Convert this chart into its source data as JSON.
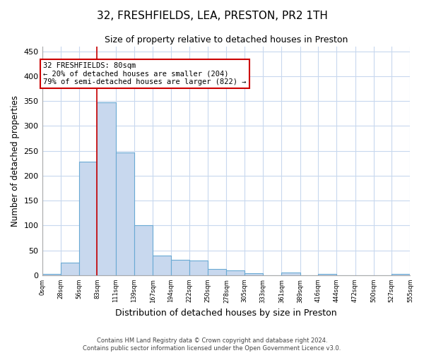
{
  "title": "32, FRESHFIELDS, LEA, PRESTON, PR2 1TH",
  "subtitle": "Size of property relative to detached houses in Preston",
  "xlabel": "Distribution of detached houses by size in Preston",
  "ylabel": "Number of detached properties",
  "footer_line1": "Contains HM Land Registry data © Crown copyright and database right 2024.",
  "footer_line2": "Contains public sector information licensed under the Open Government Licence v3.0.",
  "bar_color": "#c8d8ee",
  "bar_edge_color": "#6aaad4",
  "grid_color": "#c8d8ee",
  "bg_color": "#ffffff",
  "annotation_line_color": "#cc0000",
  "property_label": "32 FRESHFIELDS: 80sqm",
  "annotation_line1": "← 20% of detached houses are smaller (204)",
  "annotation_line2": "79% of semi-detached houses are larger (822) →",
  "bin_edges": [
    0,
    28,
    56,
    83,
    111,
    139,
    167,
    194,
    222,
    250,
    278,
    305,
    333,
    361,
    389,
    416,
    444,
    472,
    500,
    527,
    555
  ],
  "bin_labels": [
    "0sqm",
    "28sqm",
    "56sqm",
    "83sqm",
    "111sqm",
    "139sqm",
    "167sqm",
    "194sqm",
    "222sqm",
    "250sqm",
    "278sqm",
    "305sqm",
    "333sqm",
    "361sqm",
    "389sqm",
    "416sqm",
    "444sqm",
    "472sqm",
    "500sqm",
    "527sqm",
    "555sqm"
  ],
  "bar_heights": [
    3,
    25,
    228,
    347,
    246,
    100,
    40,
    31,
    30,
    12,
    10,
    4,
    0,
    5,
    0,
    3,
    0,
    0,
    0,
    3
  ],
  "ylim": [
    0,
    460
  ],
  "yticks": [
    0,
    50,
    100,
    150,
    200,
    250,
    300,
    350,
    400,
    450
  ],
  "property_line_x": 83
}
